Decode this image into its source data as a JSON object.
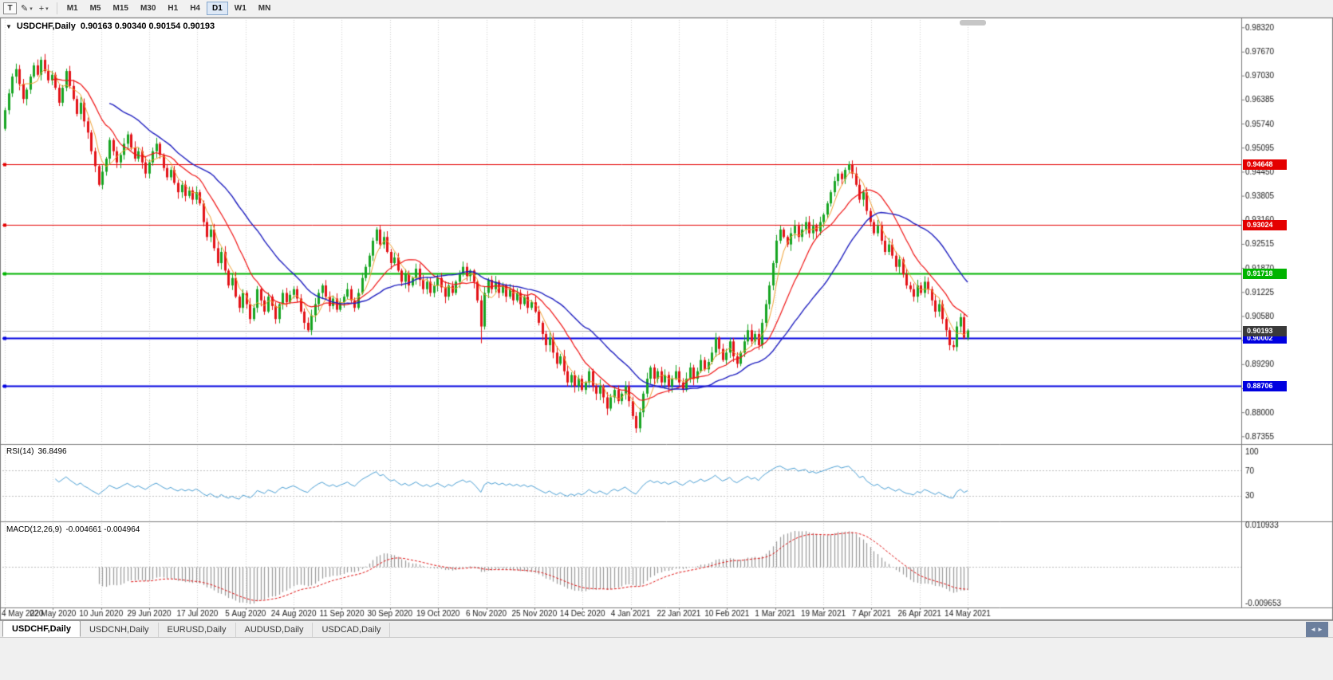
{
  "toolbar": {
    "chart_type_tool": "T",
    "pencil_icon": "✎",
    "shapes_icon": "+",
    "dropdown_icon": "▾",
    "timeframes": [
      {
        "label": "M1",
        "active": false
      },
      {
        "label": "M5",
        "active": false
      },
      {
        "label": "M15",
        "active": false
      },
      {
        "label": "M30",
        "active": false
      },
      {
        "label": "H1",
        "active": false
      },
      {
        "label": "H4",
        "active": false
      },
      {
        "label": "D1",
        "active": true
      },
      {
        "label": "W1",
        "active": false
      },
      {
        "label": "MN",
        "active": false
      }
    ]
  },
  "chart": {
    "collapse_icon": "▼",
    "title_symbol": "USDCHF,Daily",
    "title_ohlc": "0.90163 0.90340 0.90154 0.90193",
    "price_axis_labels": [
      "0.98320",
      "0.97670",
      "0.97030",
      "0.96385",
      "0.95740",
      "0.95095",
      "0.94450",
      "0.93805",
      "0.93160",
      "0.92515",
      "0.91870",
      "0.91225",
      "0.90580",
      "0.89935",
      "0.89290",
      "0.88645",
      "0.88000",
      "0.87355"
    ],
    "levels": [
      {
        "label": "0.94648",
        "price": 0.94648,
        "color": "#e40000",
        "width": 1
      },
      {
        "label": "0.93024",
        "price": 0.93024,
        "color": "#e40000",
        "width": 1
      },
      {
        "label": "0.91718",
        "price": 0.91718,
        "color": "#00b400",
        "width": 2
      },
      {
        "label": "0.90002",
        "price": 0.90002,
        "color": "#0000e0",
        "width": 2
      },
      {
        "label": "0.88706",
        "price": 0.88706,
        "color": "#0000e0",
        "width": 2
      }
    ],
    "current_price": {
      "label": "0.90193",
      "price": 0.90193,
      "badge_color": "#3a3a3a",
      "line_color": "#ababab"
    }
  },
  "chart_data": {
    "type": "candlestick",
    "symbol": "USDCHF",
    "timeframe": "Daily",
    "ohlc_current": {
      "open": 0.90163,
      "high": 0.9034,
      "low": 0.90154,
      "close": 0.90193
    },
    "x_labels": [
      "4 May 2020",
      "22 May 2020",
      "10 Jun 2020",
      "29 Jun 2020",
      "17 Jul 2020",
      "5 Aug 2020",
      "24 Aug 2020",
      "11 Sep 2020",
      "30 Sep 2020",
      "19 Oct 2020",
      "6 Nov 2020",
      "25 Nov 2020",
      "14 Dec 2020",
      "4 Jan 2021",
      "22 Jan 2021",
      "10 Feb 2021",
      "1 Mar 2021",
      "19 Mar 2021",
      "7 Apr 2021",
      "26 Apr 2021",
      "14 May 2021"
    ],
    "y_range": [
      0.8717,
      0.9852
    ],
    "closes": [
      0.961,
      0.9655,
      0.97,
      0.972,
      0.968,
      0.964,
      0.9665,
      0.97,
      0.973,
      0.9705,
      0.9745,
      0.9715,
      0.969,
      0.9705,
      0.967,
      0.963,
      0.967,
      0.9715,
      0.9675,
      0.964,
      0.96,
      0.963,
      0.958,
      0.955,
      0.95,
      0.946,
      0.941,
      0.9445,
      0.948,
      0.953,
      0.95,
      0.947,
      0.949,
      0.952,
      0.9545,
      0.951,
      0.948,
      0.95,
      0.947,
      0.944,
      0.947,
      0.95,
      0.952,
      0.949,
      0.9455,
      0.943,
      0.945,
      0.9415,
      0.939,
      0.941,
      0.938,
      0.9395,
      0.937,
      0.939,
      0.936,
      0.931,
      0.927,
      0.929,
      0.924,
      0.92,
      0.923,
      0.918,
      0.914,
      0.916,
      0.911,
      0.908,
      0.912,
      0.909,
      0.905,
      0.908,
      0.913,
      0.91,
      0.907,
      0.911,
      0.9085,
      0.905,
      0.909,
      0.912,
      0.9095,
      0.9115,
      0.913,
      0.9105,
      0.907,
      0.904,
      0.902,
      0.906,
      0.909,
      0.912,
      0.914,
      0.911,
      0.9085,
      0.9105,
      0.9075,
      0.9095,
      0.911,
      0.913,
      0.91,
      0.908,
      0.912,
      0.916,
      0.919,
      0.922,
      0.926,
      0.929,
      0.925,
      0.927,
      0.923,
      0.92,
      0.9215,
      0.918,
      0.915,
      0.917,
      0.914,
      0.916,
      0.9185,
      0.9155,
      0.913,
      0.915,
      0.912,
      0.914,
      0.916,
      0.9135,
      0.911,
      0.914,
      0.912,
      0.915,
      0.917,
      0.919,
      0.9165,
      0.918,
      0.915,
      0.91,
      0.903,
      0.912,
      0.9155,
      0.913,
      0.915,
      0.912,
      0.914,
      0.911,
      0.913,
      0.91,
      0.912,
      0.909,
      0.911,
      0.908,
      0.9095,
      0.907,
      0.904,
      0.901,
      0.898,
      0.9,
      0.896,
      0.893,
      0.895,
      0.891,
      0.888,
      0.89,
      0.887,
      0.889,
      0.886,
      0.888,
      0.891,
      0.887,
      0.885,
      0.887,
      0.884,
      0.881,
      0.884,
      0.886,
      0.883,
      0.885,
      0.887,
      0.883,
      0.879,
      0.8757,
      0.88,
      0.885,
      0.889,
      0.892,
      0.889,
      0.891,
      0.888,
      0.89,
      0.887,
      0.889,
      0.891,
      0.888,
      0.886,
      0.889,
      0.892,
      0.889,
      0.891,
      0.894,
      0.8915,
      0.8935,
      0.896,
      0.9,
      0.897,
      0.894,
      0.896,
      0.899,
      0.895,
      0.893,
      0.896,
      0.899,
      0.902,
      0.899,
      0.901,
      0.898,
      0.904,
      0.909,
      0.914,
      0.92,
      0.926,
      0.929,
      0.927,
      0.925,
      0.928,
      0.93,
      0.927,
      0.929,
      0.931,
      0.928,
      0.93,
      0.9285,
      0.931,
      0.933,
      0.936,
      0.939,
      0.942,
      0.944,
      0.9425,
      0.945,
      0.9465,
      0.944,
      0.941,
      0.937,
      0.939,
      0.934,
      0.931,
      0.928,
      0.93,
      0.926,
      0.923,
      0.925,
      0.922,
      0.919,
      0.921,
      0.917,
      0.914,
      0.913,
      0.911,
      0.914,
      0.912,
      0.915,
      0.913,
      0.91,
      0.907,
      0.909,
      0.905,
      0.902,
      0.898,
      0.8975,
      0.903,
      0.9055,
      0.9,
      0.90193
    ],
    "wick_overrides": {
      "103": {
        "h": 0.9296
      },
      "132": {
        "l": 0.8985
      },
      "175": {
        "l": 0.8745
      },
      "234": {
        "h": 0.9473
      },
      "263": {
        "l": 0.8966
      }
    },
    "render": {
      "seed": 20210514,
      "wick_base": 0.0004,
      "wick_rand": 0.0014,
      "up_color": "#17a522",
      "down_color": "#e31217",
      "first_open": 0.956,
      "grid_color": "#d2d2d2",
      "frame_color": "#7d7d7d"
    },
    "moving_averages": [
      {
        "period": 5,
        "color": "#f0a030",
        "width": 1
      },
      {
        "period": 14,
        "color": "#f01414",
        "width": 1.2
      },
      {
        "period": 30,
        "color": "#2020c0",
        "width": 1.4
      }
    ],
    "rsi": {
      "label": "RSI(14)",
      "value": "36.8496",
      "period": 14,
      "color": "#4a9fd4",
      "levels": [
        70,
        30
      ],
      "axis_labels": [
        {
          "text": "100",
          "value": 100
        },
        {
          "text": "70",
          "value": 70
        },
        {
          "text": "30",
          "value": 30
        }
      ],
      "range": [
        -10,
        110
      ]
    },
    "macd": {
      "label": "MACD(12,26,9)",
      "values_text": "-0.004661 -0.004964",
      "fast": 12,
      "slow": 26,
      "signal": 9,
      "macd_value": -0.004661,
      "signal_value": -0.004964,
      "hist_color": "#9a9a9a",
      "signal_color": "#e01010",
      "axis_labels": [
        {
          "text": "0.010933",
          "value": 0.010933
        },
        {
          "text": "-0.009653",
          "value": -0.009653
        }
      ],
      "range": [
        -0.0105,
        0.0115
      ]
    }
  },
  "tabs": [
    {
      "label": "USDCHF,Daily",
      "active": true
    },
    {
      "label": "USDCNH,Daily",
      "active": false
    },
    {
      "label": "EURUSD,Daily",
      "active": false
    },
    {
      "label": "AUDUSD,Daily",
      "active": false
    },
    {
      "label": "USDCAD,Daily",
      "active": false
    }
  ],
  "tab_scroll_icon": "◄►"
}
